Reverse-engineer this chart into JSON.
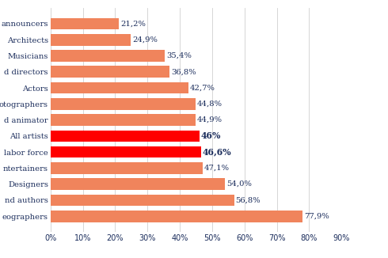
{
  "categories": [
    "announcers",
    "Architects",
    "Musicians",
    "d directors",
    "Actors",
    "otographers",
    "d animator",
    "All artists",
    "labor force",
    "ntertainers",
    "Designers",
    "nd authors",
    "eographers"
  ],
  "values": [
    21.2,
    24.9,
    35.4,
    36.8,
    42.7,
    44.8,
    44.9,
    46.0,
    46.6,
    47.1,
    54.0,
    56.8,
    77.9
  ],
  "labels": [
    "21,2%",
    "24,9%",
    "35,4%",
    "36,8%",
    "42,7%",
    "44,8%",
    "44,9%",
    "46%",
    "46,6%",
    "47,1%",
    "54,0%",
    "56,8%",
    "77,9%"
  ],
  "bar_colors": [
    "#F0845C",
    "#F0845C",
    "#F0845C",
    "#F0845C",
    "#F0845C",
    "#F0845C",
    "#F0845C",
    "#FF0000",
    "#FF0000",
    "#F0845C",
    "#F0845C",
    "#F0845C",
    "#F0845C"
  ],
  "label_bold": [
    false,
    false,
    false,
    false,
    false,
    false,
    false,
    true,
    true,
    false,
    false,
    false,
    false
  ],
  "xlim": [
    0,
    90
  ],
  "xticks": [
    0,
    10,
    20,
    30,
    40,
    50,
    60,
    70,
    80,
    90
  ],
  "background_color": "#ffffff",
  "grid_color": "#d0d0d0",
  "label_color": "#1a2c5b",
  "tick_label_color": "#1a2c5b"
}
